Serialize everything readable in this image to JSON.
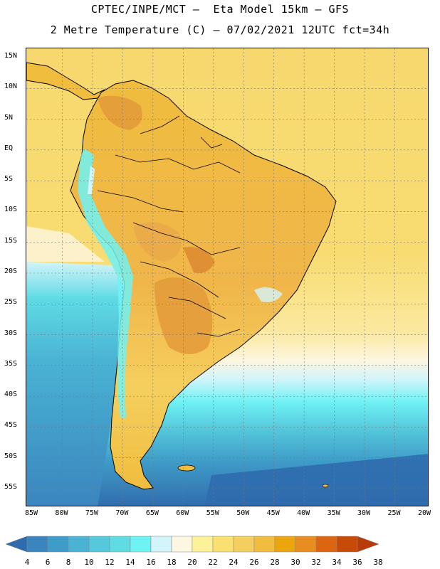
{
  "header": {
    "line1": "CPTEC/INPE/MCT –  Eta Model 15km – GFS",
    "line2": "2 Metre Temperature (C) – 07/02/2021 12UTC fct=34h"
  },
  "map": {
    "lat_labels": [
      "15N",
      "10N",
      "5N",
      "EQ",
      "5S",
      "10S",
      "15S",
      "20S",
      "25S",
      "30S",
      "35S",
      "40S",
      "45S",
      "50S",
      "55S"
    ],
    "lon_labels": [
      "85W",
      "80W",
      "75W",
      "70W",
      "65W",
      "60W",
      "55W",
      "50W",
      "45W",
      "40W",
      "35W",
      "30W",
      "25W",
      "20W"
    ],
    "lon_range": [
      -85,
      -20
    ],
    "lat_range": [
      -58,
      16
    ],
    "gridlines": true
  },
  "legend": {
    "labels": [
      "4",
      "6",
      "8",
      "10",
      "12",
      "14",
      "16",
      "18",
      "20",
      "22",
      "24",
      "26",
      "28",
      "30",
      "32",
      "34",
      "36",
      "38"
    ],
    "colors": [
      "#2f6cae",
      "#3a85be",
      "#3f9cc8",
      "#4ab3d4",
      "#55c8dc",
      "#5fdbe4",
      "#6ff2f4",
      "#d3f4fa",
      "#fdf6e0",
      "#fdf19a",
      "#f9e070",
      "#f5cf5e",
      "#f0bd3e",
      "#eba60e",
      "#e88d20",
      "#dd6410",
      "#c84a08",
      "#b83b0a"
    ]
  },
  "colors": {
    "ocean_cold": "#2f6cae",
    "ocean_cool": "#4ab3d4",
    "ocean_warm": "#f5d56a",
    "land_hot": "#e39a3a",
    "andes_cold": "#6ff2f4"
  }
}
